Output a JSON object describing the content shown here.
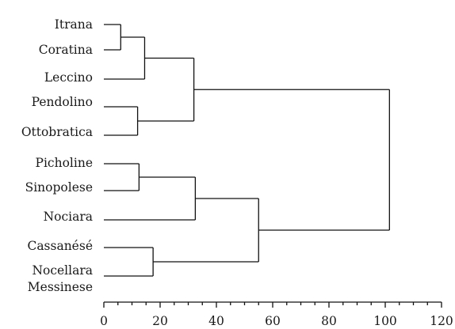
{
  "dendrogram": {
    "leaves": [
      {
        "id": "itrana",
        "label": "Itrana"
      },
      {
        "id": "coratina",
        "label": "Coratina"
      },
      {
        "id": "leccino",
        "label": "Leccino"
      },
      {
        "id": "pendolino",
        "label": "Pendolino"
      },
      {
        "id": "ottobratica",
        "label": "Ottobratica"
      },
      {
        "id": "picholine",
        "label": "Picholine"
      },
      {
        "id": "sinopolese",
        "label": "Sinopolese"
      },
      {
        "id": "nociara",
        "label": "Nociara"
      },
      {
        "id": "cassanese",
        "label": "Cassanésé"
      },
      {
        "id": "nocellara",
        "label": "Nocellara Messinese",
        "lines": [
          "Nocellara",
          "Messinese"
        ]
      }
    ],
    "merges": [
      {
        "id": "m1",
        "left": "itrana",
        "right": "coratina",
        "distance": 6
      },
      {
        "id": "m2",
        "left": "m1",
        "right": "leccino",
        "distance": 14.5
      },
      {
        "id": "m3",
        "left": "pendolino",
        "right": "ottobratica",
        "distance": 12
      },
      {
        "id": "m4",
        "left": "m2",
        "right": "m3",
        "distance": 32
      },
      {
        "id": "m5",
        "left": "picholine",
        "right": "sinopolese",
        "distance": 12.5
      },
      {
        "id": "m6",
        "left": "m5",
        "right": "nociara",
        "distance": 32.5
      },
      {
        "id": "m7",
        "left": "cassanese",
        "right": "nocellara",
        "distance": 17.5
      },
      {
        "id": "m8",
        "left": "m6",
        "right": "m7",
        "distance": 55
      },
      {
        "id": "m9",
        "left": "m4",
        "right": "m8",
        "distance": 101.5
      }
    ],
    "axis": {
      "min": 0,
      "max": 120,
      "major_ticks": [
        0,
        20,
        40,
        60,
        80,
        100,
        120
      ],
      "minor_step": 5
    }
  }
}
